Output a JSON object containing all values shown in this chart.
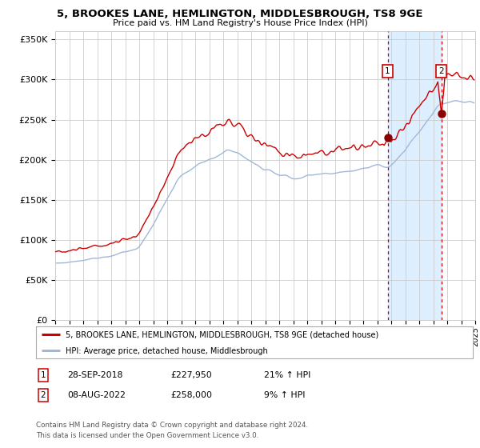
{
  "title": "5, BROOKES LANE, HEMLINGTON, MIDDLESBROUGH, TS8 9GE",
  "subtitle": "Price paid vs. HM Land Registry's House Price Index (HPI)",
  "sale1_date": "28-SEP-2018",
  "sale1_price": 227950,
  "sale1_label": "21% ↑ HPI",
  "sale2_date": "08-AUG-2022",
  "sale2_price": 258000,
  "sale2_label": "9% ↑ HPI",
  "legend_property": "5, BROOKES LANE, HEMLINGTON, MIDDLESBROUGH, TS8 9GE (detached house)",
  "legend_hpi": "HPI: Average price, detached house, Middlesbrough",
  "footnote1": "Contains HM Land Registry data © Crown copyright and database right 2024.",
  "footnote2": "This data is licensed under the Open Government Licence v3.0.",
  "hpi_color": "#a0b8d8",
  "property_color": "#cc0000",
  "dot_color": "#8b0000",
  "shade_color": "#ddeeff",
  "vline_color": "#cc0000",
  "ylim_min": 0,
  "ylim_max": 360000,
  "yticks": [
    0,
    50000,
    100000,
    150000,
    200000,
    250000,
    300000,
    350000
  ],
  "ytick_labels": [
    "£0",
    "£50K",
    "£100K",
    "£150K",
    "£200K",
    "£250K",
    "£300K",
    "£350K"
  ],
  "sale1_x": 2018.75,
  "sale2_x": 2022.58,
  "bg_color": "#ffffff",
  "grid_color": "#cccccc",
  "xlim_min": 1995,
  "xlim_max": 2025
}
